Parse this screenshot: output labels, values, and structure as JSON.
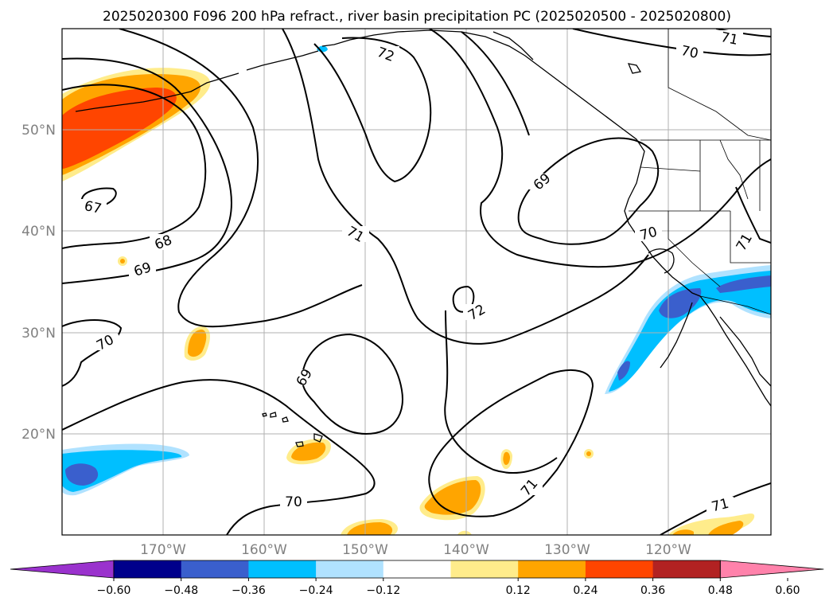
{
  "title": "2025020300 F096 200 hPa refract., river basin precipitation PC (2025020500 - 2025020800)",
  "lat_labels": [
    "50°N",
    "40°N",
    "30°N",
    "20°N"
  ],
  "lon_labels": [
    "170°W",
    "160°W",
    "150°W",
    "140°W",
    "130°W",
    "120°W"
  ],
  "contour_labels": [
    "72",
    "71",
    "70",
    "67",
    "68",
    "69",
    "71",
    "70",
    "69",
    "72",
    "71",
    "70",
    "69",
    "70",
    "71",
    "71"
  ],
  "colorbar": {
    "labels": [
      "−0.60",
      "−0.48",
      "−0.36",
      "−0.24",
      "−0.12",
      "0.12",
      "0.24",
      "0.36",
      "0.48",
      "0.60"
    ],
    "colors": [
      "#9a32cd",
      "#00008b",
      "#3a5fcd",
      "#00bfff",
      "#b0e2ff",
      "#ffffff",
      "#ffec8b",
      "#ffa500",
      "#ff4500",
      "#b22222",
      "#ff82ab"
    ]
  },
  "colors": {
    "orange": "#ffa500",
    "red_orange": "#ff4500",
    "light_yellow": "#ffec8b",
    "light_blue": "#b0e2ff",
    "deep_sky_blue": "#00bfff",
    "royal_blue": "#3a5fcd"
  }
}
